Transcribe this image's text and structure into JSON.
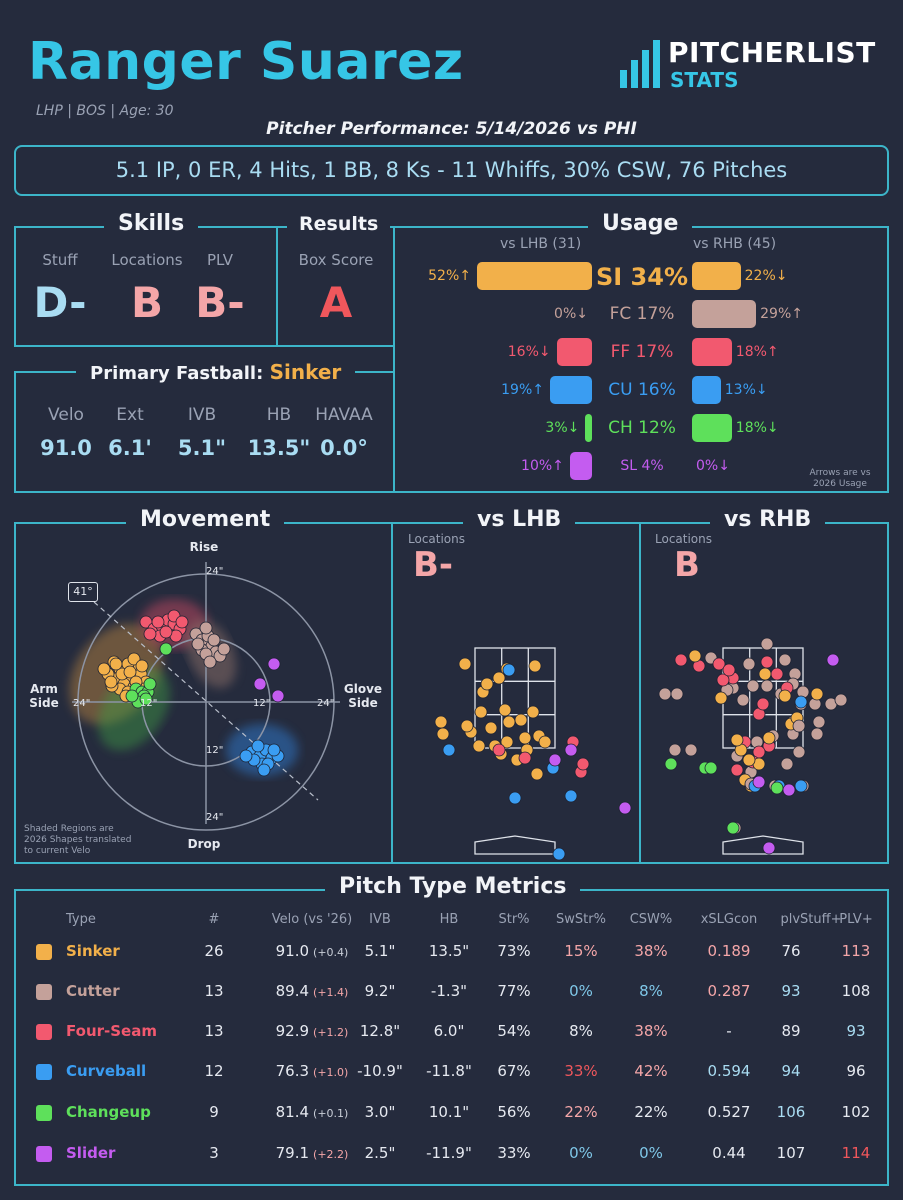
{
  "header": {
    "name": "Ranger Suarez",
    "meta": "LHP | BOS | Age: 30",
    "brand_top": "PITCHERLIST",
    "brand_bottom": "STATS",
    "performance": "Pitcher Performance: 5/14/2026 vs PHI",
    "line": "5.1 IP, 0 ER, 4 Hits, 1 BB, 8 Ks - 11 Whiffs, 30% CSW, 76 Pitches"
  },
  "skills": {
    "title": "Skills",
    "items": [
      {
        "label": "Stuff",
        "grade": "D-",
        "color": "#a9dcf2"
      },
      {
        "label": "Locations",
        "grade": "B",
        "color": "#f4a6a8"
      },
      {
        "label": "PLV",
        "grade": "B-",
        "color": "#f4a6a8"
      }
    ]
  },
  "results": {
    "title": "Results",
    "label": "Box Score",
    "grade": "A",
    "color": "#f0575c"
  },
  "fastball": {
    "title": "Primary Fastball:",
    "pitch": "Sinker",
    "labels": [
      "Velo",
      "Ext",
      "IVB",
      "HB",
      "HAVAA"
    ],
    "values": [
      "91.0",
      "6.1'",
      "5.1\"",
      "13.5\"",
      "0.0°"
    ]
  },
  "usage": {
    "title": "Usage",
    "lhb_header": "vs LHB (31)",
    "rhb_header": "vs RHB (45)",
    "note_1": "Arrows are vs",
    "note_2": "2026 Usage",
    "rows": [
      {
        "pitch": "SI 34%",
        "lhb": "52%↑",
        "rhb": "22%↓",
        "lhb_pct": 52,
        "rhb_pct": 22,
        "color": "#f2b04a",
        "big": true
      },
      {
        "pitch": "FC 17%",
        "lhb": "0%↓",
        "rhb": "29%↑",
        "lhb_pct": 0,
        "rhb_pct": 29,
        "color": "#c4a19a"
      },
      {
        "pitch": "FF 17%",
        "lhb": "16%↓",
        "rhb": "18%↑",
        "lhb_pct": 16,
        "rhb_pct": 18,
        "color": "#f2596f"
      },
      {
        "pitch": "CU 16%",
        "lhb": "19%↑",
        "rhb": "13%↓",
        "lhb_pct": 19,
        "rhb_pct": 13,
        "color": "#3a9df2"
      },
      {
        "pitch": "CH 12%",
        "lhb": "3%↓",
        "rhb": "18%↓",
        "lhb_pct": 3,
        "rhb_pct": 18,
        "color": "#5ee05b"
      },
      {
        "pitch": "SL 4%",
        "lhb": "10%↑",
        "rhb": "0%↓",
        "lhb_pct": 10,
        "rhb_pct": 0,
        "color": "#c45cf0",
        "small": true
      }
    ]
  },
  "movement": {
    "title": "Movement",
    "rise": "Rise",
    "drop": "Drop",
    "arm": [
      "Arm",
      "Side"
    ],
    "glove": [
      "Glove",
      "Side"
    ],
    "angle": "41°",
    "ring_24": "24\"",
    "ring_12": "12\"",
    "note": [
      "Shaded Regions are",
      "2026 Shapes translated",
      "to current Velo"
    ]
  },
  "vs_lhb": {
    "title": "vs LHB",
    "label": "Locations",
    "grade": "B-"
  },
  "vs_rhb": {
    "title": "vs RHB",
    "label": "Locations",
    "grade": "B"
  },
  "metrics": {
    "title": "Pitch Type Metrics",
    "headers": [
      "Type",
      "#",
      "Velo (vs '26)",
      "IVB",
      "HB",
      "Str%",
      "SwStr%",
      "CSW%",
      "xSLGcon",
      "plvStuff+",
      "PLV+"
    ],
    "rows": [
      {
        "type": "Sinker",
        "color": "#f2b04a",
        "n": "26",
        "velo": "91.0",
        "delta": "(+0.4)",
        "delta_c": "#c9ced8",
        "ivb": "5.1\"",
        "hb": "13.5\"",
        "str": "73%",
        "swstr": "15%",
        "swstr_c": "#f4a6a8",
        "csw": "38%",
        "csw_c": "#f4a6a8",
        "xslg": "0.189",
        "xslg_c": "#f4a6a8",
        "stuff": "76",
        "stuff_c": "#e6e9f0",
        "plv": "113",
        "plv_c": "#f4a6a8"
      },
      {
        "type": "Cutter",
        "color": "#c4a19a",
        "n": "13",
        "velo": "89.4",
        "delta": "(+1.4)",
        "delta_c": "#f4a6a8",
        "ivb": "9.2\"",
        "hb": "-1.3\"",
        "str": "77%",
        "swstr": "0%",
        "swstr_c": "#7fc7e8",
        "csw": "8%",
        "csw_c": "#7fc7e8",
        "xslg": "0.287",
        "xslg_c": "#f4a6a8",
        "stuff": "93",
        "stuff_c": "#a9dcf2",
        "plv": "108",
        "plv_c": "#e6e9f0"
      },
      {
        "type": "Four-Seam",
        "color": "#f2596f",
        "n": "13",
        "velo": "92.9",
        "delta": "(+1.2)",
        "delta_c": "#f4a6a8",
        "ivb": "12.8\"",
        "hb": "6.0\"",
        "str": "54%",
        "swstr": "8%",
        "swstr_c": "#e6e9f0",
        "csw": "38%",
        "csw_c": "#f4a6a8",
        "xslg": "-",
        "xslg_c": "#e6e9f0",
        "stuff": "89",
        "stuff_c": "#e6e9f0",
        "plv": "93",
        "plv_c": "#a9dcf2"
      },
      {
        "type": "Curveball",
        "color": "#3a9df2",
        "n": "12",
        "velo": "76.3",
        "delta": "(+1.0)",
        "delta_c": "#f4a6a8",
        "ivb": "-10.9\"",
        "hb": "-11.8\"",
        "str": "67%",
        "swstr": "33%",
        "swstr_c": "#f0575c",
        "csw": "42%",
        "csw_c": "#f4a6a8",
        "xslg": "0.594",
        "xslg_c": "#a9dcf2",
        "stuff": "94",
        "stuff_c": "#a9dcf2",
        "plv": "96",
        "plv_c": "#e6e9f0"
      },
      {
        "type": "Changeup",
        "color": "#5ee05b",
        "n": "9",
        "velo": "81.4",
        "delta": "(+0.1)",
        "delta_c": "#c9ced8",
        "ivb": "3.0\"",
        "hb": "10.1\"",
        "str": "56%",
        "swstr": "22%",
        "swstr_c": "#f4a6a8",
        "csw": "22%",
        "csw_c": "#e6e9f0",
        "xslg": "0.527",
        "xslg_c": "#e6e9f0",
        "stuff": "106",
        "stuff_c": "#a9dcf2",
        "plv": "102",
        "plv_c": "#e6e9f0"
      },
      {
        "type": "Slider",
        "color": "#c45cf0",
        "n": "3",
        "velo": "79.1",
        "delta": "(+2.2)",
        "delta_c": "#f4a6a8",
        "ivb": "2.5\"",
        "hb": "-11.9\"",
        "str": "33%",
        "swstr": "0%",
        "swstr_c": "#7fc7e8",
        "csw": "0%",
        "csw_c": "#7fc7e8",
        "xslg": "0.44",
        "xslg_c": "#e6e9f0",
        "stuff": "107",
        "stuff_c": "#e6e9f0",
        "plv": "114",
        "plv_c": "#f0575c"
      }
    ]
  }
}
